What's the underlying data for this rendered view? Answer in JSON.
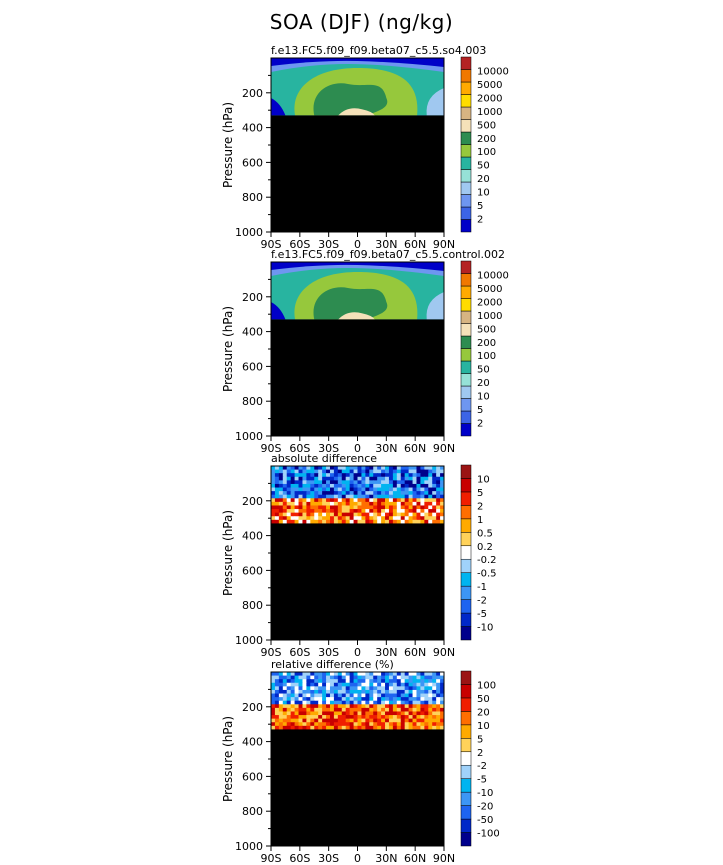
{
  "title": "SOA (DJF) (ng/kg)",
  "chart_data": [
    {
      "type": "heatmap",
      "title": "f.e13.FC5.f09_f09.beta07_c5.5.so4.003",
      "ylabel": "Pressure (hPa)",
      "xlabel": "",
      "x_ticks": [
        "90S",
        "60S",
        "30S",
        "0",
        "30N",
        "60N",
        "90N"
      ],
      "y_ticks": [
        "200",
        "400",
        "600",
        "800",
        "1000"
      ],
      "xlim": [
        -90,
        90
      ],
      "ylim": [
        1000,
        50
      ],
      "missing_below_hPa": 330,
      "colorbar": {
        "labels": [
          "10000",
          "5000",
          "2000",
          "1000",
          "500",
          "200",
          "100",
          "50",
          "20",
          "10",
          "5",
          "2"
        ],
        "colors": [
          "#0000c8",
          "#3c64e6",
          "#6e96f0",
          "#a0c8f0",
          "#96e1d7",
          "#28b4a0",
          "#96c83c",
          "#2d8c50",
          "#f5e1b9",
          "#d7b482",
          "#ffdc00",
          "#ffaa00",
          "#f07800",
          "#b42323"
        ]
      },
      "field_colors": [
        "#0000c8",
        "#3c64e6",
        "#6e96f0",
        "#a0c8f0",
        "#28b4a0",
        "#96c83c",
        "#2d8c50",
        "#f5e1b9"
      ]
    },
    {
      "type": "heatmap",
      "title": "f.e13.FC5.f09_f09.beta07_c5.5.control.002",
      "ylabel": "Pressure (hPa)",
      "xlabel": "",
      "x_ticks": [
        "90S",
        "60S",
        "30S",
        "0",
        "30N",
        "60N",
        "90N"
      ],
      "y_ticks": [
        "200",
        "400",
        "600",
        "800",
        "1000"
      ],
      "xlim": [
        -90,
        90
      ],
      "ylim": [
        1000,
        50
      ],
      "missing_below_hPa": 330,
      "colorbar": {
        "labels": [
          "10000",
          "5000",
          "2000",
          "1000",
          "500",
          "200",
          "100",
          "50",
          "20",
          "10",
          "5",
          "2"
        ],
        "colors": [
          "#0000c8",
          "#3c64e6",
          "#6e96f0",
          "#a0c8f0",
          "#96e1d7",
          "#28b4a0",
          "#96c83c",
          "#2d8c50",
          "#f5e1b9",
          "#d7b482",
          "#ffdc00",
          "#ffaa00",
          "#f07800",
          "#b42323"
        ]
      },
      "field_colors": [
        "#0000c8",
        "#3c64e6",
        "#6e96f0",
        "#a0c8f0",
        "#28b4a0",
        "#96c83c",
        "#2d8c50",
        "#f5e1b9"
      ]
    },
    {
      "type": "heatmap",
      "title": "absolute difference",
      "ylabel": "Pressure (hPa)",
      "xlabel": "",
      "x_ticks": [
        "90S",
        "60S",
        "30S",
        "0",
        "30N",
        "60N",
        "90N"
      ],
      "y_ticks": [
        "200",
        "400",
        "600",
        "800",
        "1000"
      ],
      "xlim": [
        -90,
        90
      ],
      "ylim": [
        1000,
        50
      ],
      "missing_below_hPa": 330,
      "colorbar": {
        "labels": [
          "10",
          "5",
          "2",
          "1",
          "0.5",
          "0.2",
          "-0.2",
          "-0.5",
          "-1",
          "-2",
          "-5",
          "-10"
        ],
        "colors": [
          "#00008c",
          "#0028c8",
          "#1e64f0",
          "#3c96f5",
          "#00b4f0",
          "#a0d2fa",
          "#ffffff",
          "#ffd25a",
          "#ffaa00",
          "#ff6e00",
          "#f01e00",
          "#c80000",
          "#9b1414"
        ]
      },
      "field_colors": [
        "#00008c",
        "#0028c8",
        "#1e64f0",
        "#3c96f5",
        "#00b4f0",
        "#a0d2fa",
        "#ffffff",
        "#ffd25a",
        "#ffaa00",
        "#ff6e00",
        "#f01e00",
        "#c80000"
      ]
    },
    {
      "type": "heatmap",
      "title": "relative difference (%)",
      "ylabel": "Pressure (hPa)",
      "xlabel": "",
      "x_ticks": [
        "90S",
        "60S",
        "30S",
        "0",
        "30N",
        "60N",
        "90N"
      ],
      "y_ticks": [
        "200",
        "400",
        "600",
        "800",
        "1000"
      ],
      "xlim": [
        -90,
        90
      ],
      "ylim": [
        1000,
        50
      ],
      "missing_below_hPa": 330,
      "colorbar": {
        "labels": [
          "100",
          "50",
          "20",
          "10",
          "5",
          "2",
          "-2",
          "-5",
          "-10",
          "-20",
          "-50",
          "-100"
        ],
        "colors": [
          "#00008c",
          "#0028c8",
          "#1e64f0",
          "#3c96f5",
          "#00b4f0",
          "#a0d2fa",
          "#ffffff",
          "#ffd25a",
          "#ffaa00",
          "#ff6e00",
          "#f01e00",
          "#c80000",
          "#9b1414"
        ]
      },
      "field_colors": [
        "#0028c8",
        "#1e64f0",
        "#3c96f5",
        "#00b4f0",
        "#a0d2fa",
        "#ffffff",
        "#ffd25a",
        "#ffaa00",
        "#ff6e00",
        "#f01e00",
        "#c80000"
      ]
    }
  ]
}
